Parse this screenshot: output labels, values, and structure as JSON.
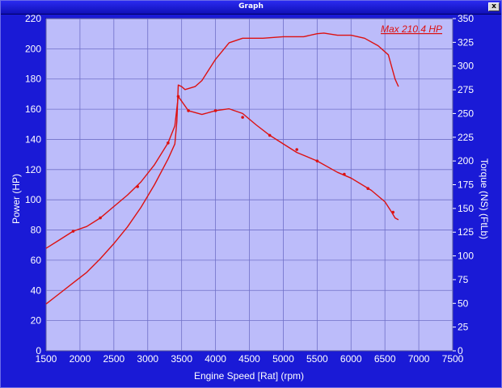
{
  "window": {
    "title": "Graph",
    "close_label": "x"
  },
  "chart_data": {
    "type": "line",
    "xlabel": "Engine Speed [Rat] (rpm)",
    "ylabel": "Power (HP)",
    "y2label": "Torque (NS) (FtLb)",
    "annotation": "Max 210.4 HP",
    "xlim": [
      1500,
      7500
    ],
    "ylim": [
      0,
      220
    ],
    "y2lim": [
      0,
      350
    ],
    "x_ticks": [
      1500,
      2000,
      2500,
      3000,
      3500,
      4000,
      4500,
      5000,
      5500,
      6000,
      6500,
      7000,
      7500
    ],
    "y_ticks": [
      0,
      20,
      40,
      60,
      80,
      100,
      120,
      140,
      160,
      180,
      200,
      220
    ],
    "y2_ticks": [
      0,
      25,
      50,
      75,
      100,
      125,
      150,
      175,
      200,
      225,
      250,
      275,
      300,
      325,
      350
    ],
    "colors": {
      "plot_bg": "#bcbcfa",
      "frame_bg": "#1a1ad6",
      "grid": "#7070c8",
      "line": "#dd1111",
      "annotation": "#dd1111",
      "axis_text": "#ffffff"
    },
    "series": [
      {
        "axis": "left",
        "points": [
          [
            1500,
            31
          ],
          [
            1700,
            38
          ],
          [
            1900,
            45
          ],
          [
            2100,
            52
          ],
          [
            2300,
            61
          ],
          [
            2500,
            71
          ],
          [
            2700,
            82
          ],
          [
            2900,
            95
          ],
          [
            3100,
            110
          ],
          [
            3300,
            127
          ],
          [
            3400,
            137
          ],
          [
            3430,
            152
          ],
          [
            3450,
            176
          ],
          [
            3500,
            175
          ],
          [
            3550,
            173
          ],
          [
            3700,
            175
          ],
          [
            3800,
            179
          ],
          [
            4000,
            193
          ],
          [
            4200,
            204
          ],
          [
            4400,
            207
          ],
          [
            4500,
            207
          ],
          [
            4700,
            207
          ],
          [
            5000,
            208
          ],
          [
            5300,
            208
          ],
          [
            5500,
            210
          ],
          [
            5600,
            210.4
          ],
          [
            5800,
            209
          ],
          [
            6000,
            209
          ],
          [
            6200,
            207
          ],
          [
            6400,
            202
          ],
          [
            6550,
            196
          ],
          [
            6650,
            180
          ],
          [
            6700,
            175
          ]
        ]
      },
      {
        "axis": "right",
        "points": [
          [
            1500,
            108
          ],
          [
            1700,
            117
          ],
          [
            1900,
            126
          ],
          [
            2100,
            131
          ],
          [
            2300,
            140
          ],
          [
            2500,
            152
          ],
          [
            2700,
            164
          ],
          [
            2900,
            178
          ],
          [
            3100,
            196
          ],
          [
            3300,
            219
          ],
          [
            3400,
            237
          ],
          [
            3450,
            268
          ],
          [
            3500,
            263
          ],
          [
            3600,
            253
          ],
          [
            3800,
            249
          ],
          [
            4000,
            253
          ],
          [
            4200,
            255
          ],
          [
            4400,
            250
          ],
          [
            4600,
            238
          ],
          [
            4800,
            227
          ],
          [
            5000,
            218
          ],
          [
            5200,
            209
          ],
          [
            5500,
            200
          ],
          [
            5800,
            188
          ],
          [
            6000,
            182
          ],
          [
            6300,
            169
          ],
          [
            6500,
            157
          ],
          [
            6600,
            146
          ],
          [
            6650,
            140
          ],
          [
            6700,
            138
          ]
        ],
        "markers": [
          [
            1900,
            126
          ],
          [
            2300,
            140
          ],
          [
            2850,
            173
          ],
          [
            3300,
            219
          ],
          [
            3450,
            268
          ],
          [
            3600,
            253
          ],
          [
            4000,
            253
          ],
          [
            4400,
            246
          ],
          [
            4800,
            227
          ],
          [
            5200,
            212
          ],
          [
            5500,
            200
          ],
          [
            5900,
            186
          ],
          [
            6250,
            171
          ],
          [
            6620,
            146
          ]
        ]
      }
    ]
  }
}
